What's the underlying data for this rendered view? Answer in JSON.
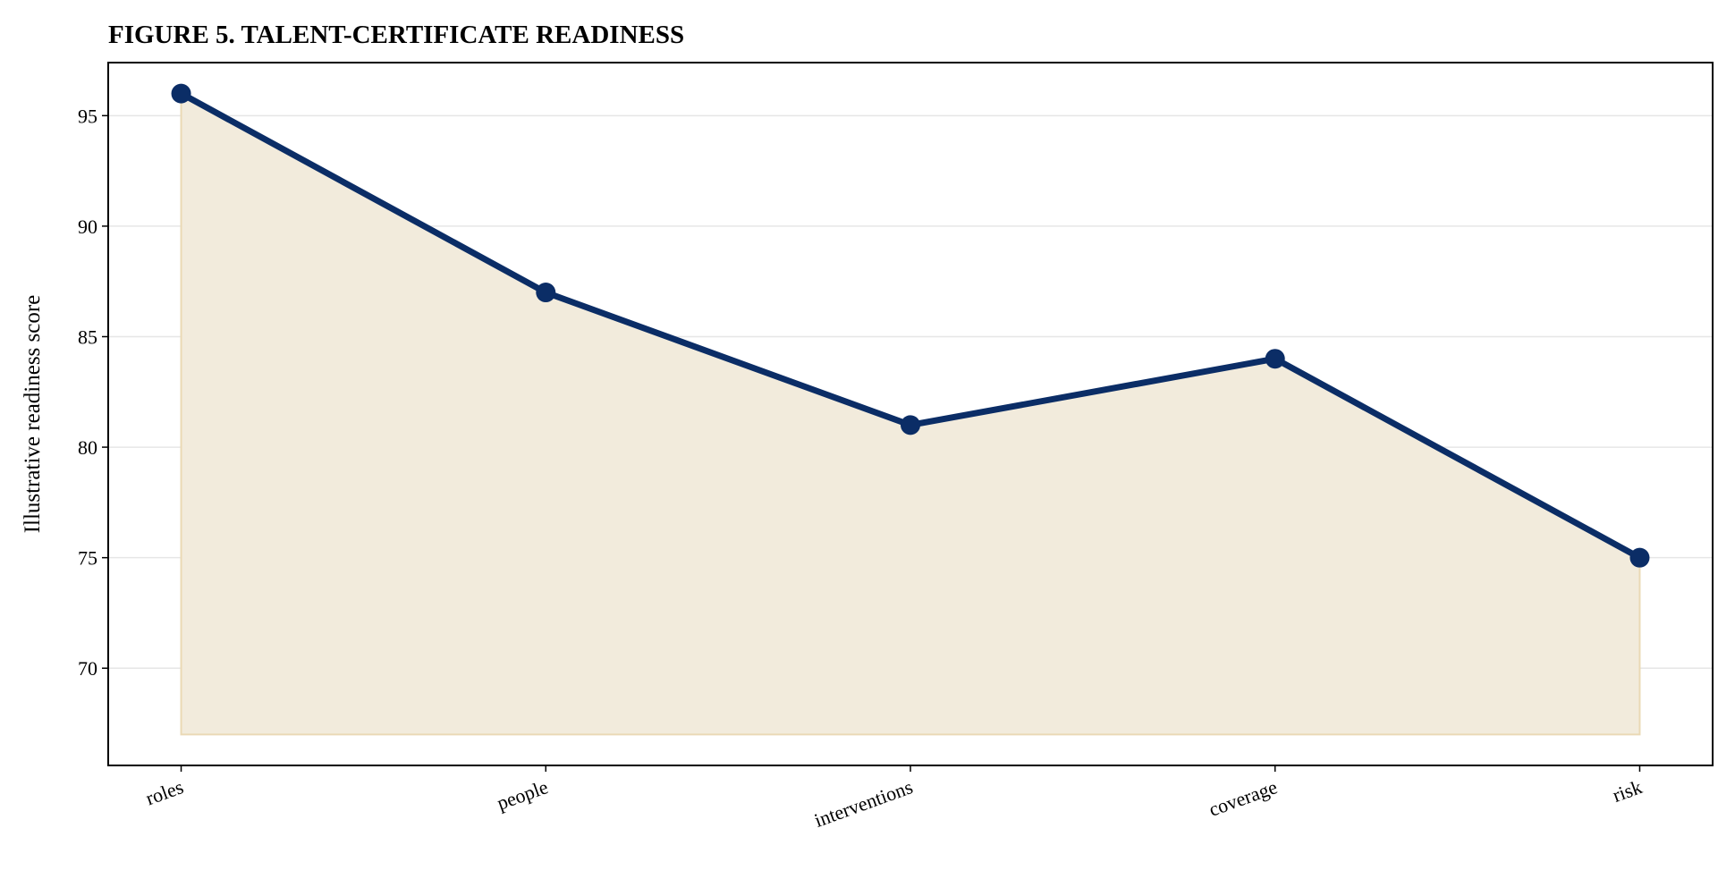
{
  "chart_data": {
    "type": "line",
    "title": "FIGURE 5. TALENT-CERTIFICATE READINESS",
    "ylabel": "Illustrative readiness score",
    "categories": [
      "roles",
      "people",
      "interventions",
      "coverage",
      "risk"
    ],
    "values": [
      96,
      87,
      81,
      84,
      75
    ],
    "color": "#0b2d66",
    "fill_color": "#f2ebdc",
    "fill_to": 67,
    "ylim": [
      65.6,
      97.4
    ],
    "yticks": [
      70,
      75,
      80,
      85,
      90,
      95
    ],
    "grid": true
  }
}
